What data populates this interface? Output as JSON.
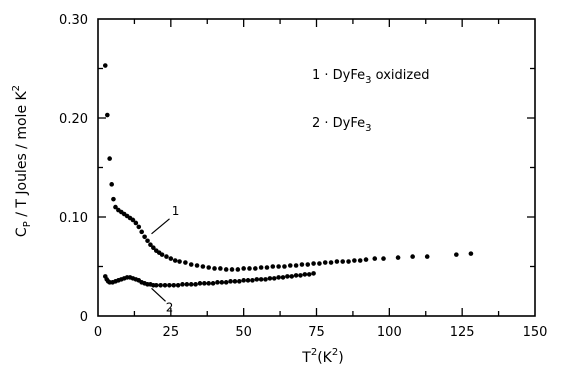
{
  "chart_data": {
    "type": "scatter",
    "title": "",
    "xlabel": {
      "base": "T",
      "sup": "2",
      "unit_base": "(K",
      "unit_sup": "2",
      "unit_close": ")"
    },
    "ylabel": {
      "prefix": "C",
      "sub": "P",
      "middle": " / T  Joules / mole  K",
      "sup": "2"
    },
    "xlim": [
      0,
      150
    ],
    "ylim": [
      0,
      0.3
    ],
    "x_ticks": [
      0,
      25,
      50,
      75,
      100,
      125,
      150
    ],
    "x_tick_labels": [
      "0",
      "25",
      "50",
      "75",
      "100",
      "125",
      "150"
    ],
    "y_ticks": [
      0,
      0.1,
      0.2,
      0.3
    ],
    "y_tick_labels": [
      "0",
      "0.10",
      "0.20",
      "0.30"
    ],
    "grid": false,
    "legend_position": "top-right",
    "legend": [
      {
        "id": "1",
        "pre": "1 · DyFe",
        "sub": "3",
        "post": " oxidized"
      },
      {
        "id": "2",
        "pre": "2 · DyFe",
        "sub": "3",
        "post": ""
      }
    ],
    "annotations": [
      {
        "text": "1",
        "series": "1",
        "at": [
          17,
          0.08
        ]
      },
      {
        "text": "2",
        "series": "2",
        "at": [
          17,
          0.031
        ]
      }
    ],
    "series": [
      {
        "id": "1",
        "points": [
          [
            2.5,
            0.253
          ],
          [
            3.2,
            0.203
          ],
          [
            4.0,
            0.159
          ],
          [
            4.7,
            0.133
          ],
          [
            5.3,
            0.118
          ],
          [
            6.0,
            0.11
          ],
          [
            7.0,
            0.107
          ],
          [
            8.0,
            0.105
          ],
          [
            9.0,
            0.103
          ],
          [
            10.0,
            0.101
          ],
          [
            11.0,
            0.099
          ],
          [
            12.0,
            0.097
          ],
          [
            13.0,
            0.094
          ],
          [
            14.0,
            0.09
          ],
          [
            15.0,
            0.085
          ],
          [
            16.0,
            0.08
          ],
          [
            17.0,
            0.076
          ],
          [
            18.0,
            0.072
          ],
          [
            19.0,
            0.069
          ],
          [
            20.0,
            0.066
          ],
          [
            21.0,
            0.064
          ],
          [
            22.0,
            0.062
          ],
          [
            23.5,
            0.06
          ],
          [
            25.0,
            0.058
          ],
          [
            26.5,
            0.056
          ],
          [
            28.0,
            0.055
          ],
          [
            30.0,
            0.054
          ],
          [
            32.0,
            0.052
          ],
          [
            34.0,
            0.051
          ],
          [
            36.0,
            0.05
          ],
          [
            38.0,
            0.049
          ],
          [
            40.0,
            0.048
          ],
          [
            42.0,
            0.048
          ],
          [
            44.0,
            0.047
          ],
          [
            46.0,
            0.047
          ],
          [
            48.0,
            0.047
          ],
          [
            50.0,
            0.048
          ],
          [
            52.0,
            0.048
          ],
          [
            54.0,
            0.048
          ],
          [
            56.0,
            0.049
          ],
          [
            58.0,
            0.049
          ],
          [
            60.0,
            0.05
          ],
          [
            62.0,
            0.05
          ],
          [
            64.0,
            0.05
          ],
          [
            66.0,
            0.051
          ],
          [
            68.0,
            0.051
          ],
          [
            70.0,
            0.052
          ],
          [
            72.0,
            0.052
          ],
          [
            74.0,
            0.053
          ],
          [
            76.0,
            0.053
          ],
          [
            78.0,
            0.054
          ],
          [
            80.0,
            0.054
          ],
          [
            82.0,
            0.055
          ],
          [
            84.0,
            0.055
          ],
          [
            86.0,
            0.055
          ],
          [
            88.0,
            0.056
          ],
          [
            90.0,
            0.056
          ],
          [
            92.0,
            0.057
          ],
          [
            95.0,
            0.058
          ],
          [
            98.0,
            0.058
          ],
          [
            103.0,
            0.059
          ],
          [
            108.0,
            0.06
          ],
          [
            113.0,
            0.06
          ],
          [
            123.0,
            0.062
          ],
          [
            128.0,
            0.063
          ]
        ]
      },
      {
        "id": "2",
        "points": [
          [
            2.5,
            0.04
          ],
          [
            3.0,
            0.037
          ],
          [
            3.5,
            0.035
          ],
          [
            4.0,
            0.034
          ],
          [
            5.0,
            0.034
          ],
          [
            6.0,
            0.035
          ],
          [
            7.0,
            0.036
          ],
          [
            8.0,
            0.037
          ],
          [
            9.0,
            0.038
          ],
          [
            10.0,
            0.039
          ],
          [
            11.0,
            0.039
          ],
          [
            12.0,
            0.038
          ],
          [
            13.0,
            0.037
          ],
          [
            14.0,
            0.036
          ],
          [
            15.0,
            0.034
          ],
          [
            16.0,
            0.033
          ],
          [
            17.0,
            0.032
          ],
          [
            18.0,
            0.032
          ],
          [
            19.0,
            0.031
          ],
          [
            20.0,
            0.031
          ],
          [
            21.5,
            0.031
          ],
          [
            23.0,
            0.031
          ],
          [
            24.5,
            0.031
          ],
          [
            26.0,
            0.031
          ],
          [
            27.5,
            0.031
          ],
          [
            29.0,
            0.032
          ],
          [
            30.5,
            0.032
          ],
          [
            32.0,
            0.032
          ],
          [
            33.5,
            0.032
          ],
          [
            35.0,
            0.033
          ],
          [
            36.5,
            0.033
          ],
          [
            38.0,
            0.033
          ],
          [
            39.5,
            0.033
          ],
          [
            41.0,
            0.034
          ],
          [
            42.5,
            0.034
          ],
          [
            44.0,
            0.034
          ],
          [
            45.5,
            0.035
          ],
          [
            47.0,
            0.035
          ],
          [
            48.5,
            0.035
          ],
          [
            50.0,
            0.036
          ],
          [
            51.5,
            0.036
          ],
          [
            53.0,
            0.036
          ],
          [
            54.5,
            0.037
          ],
          [
            56.0,
            0.037
          ],
          [
            57.5,
            0.037
          ],
          [
            59.0,
            0.038
          ],
          [
            60.5,
            0.038
          ],
          [
            62.0,
            0.039
          ],
          [
            63.5,
            0.039
          ],
          [
            65.0,
            0.04
          ],
          [
            66.5,
            0.04
          ],
          [
            68.0,
            0.041
          ],
          [
            69.5,
            0.041
          ],
          [
            71.0,
            0.042
          ],
          [
            72.5,
            0.042
          ],
          [
            74.0,
            0.043
          ]
        ]
      }
    ]
  }
}
